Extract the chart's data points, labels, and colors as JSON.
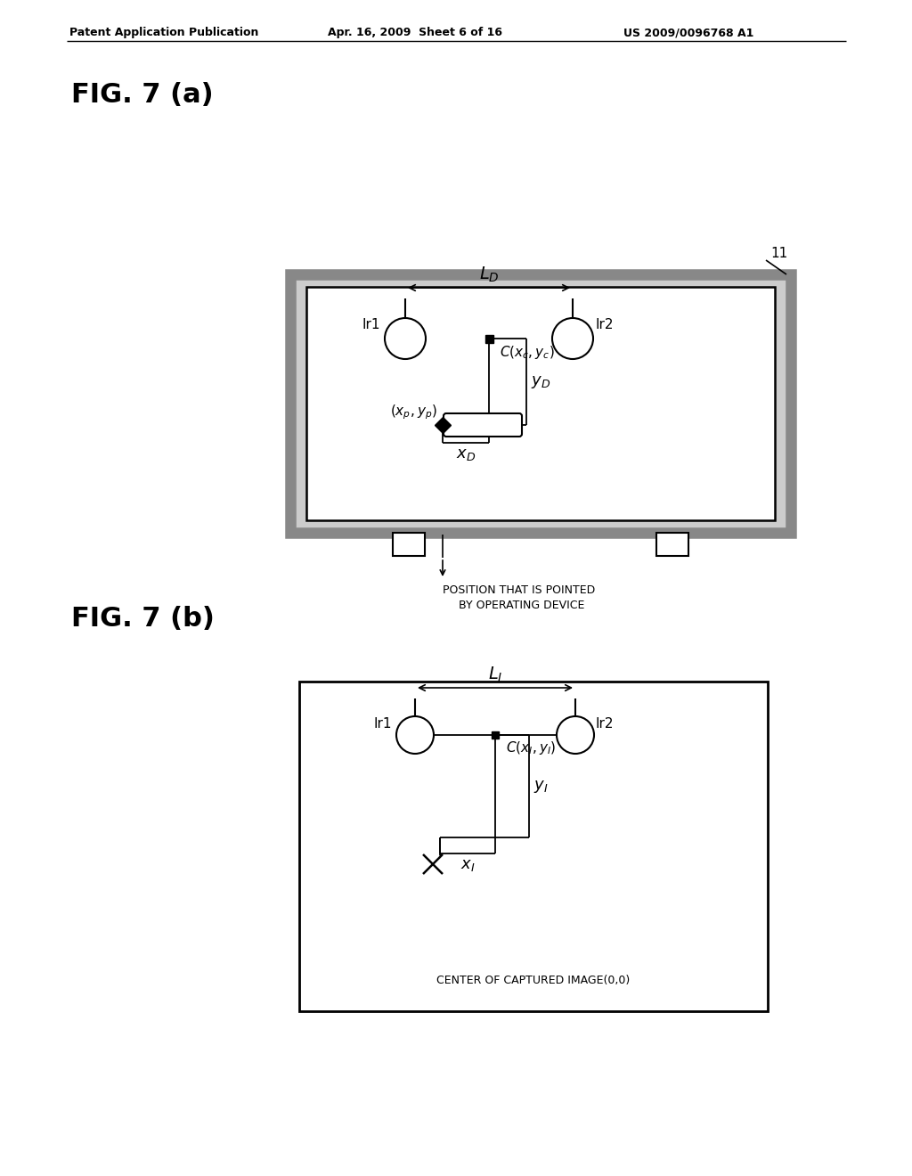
{
  "bg_color": "#ffffff",
  "header_left": "Patent Application Publication",
  "header_mid": "Apr. 16, 2009  Sheet 6 of 16",
  "header_right": "US 2009/0096768 A1",
  "fig_a_label": "FIG. 7 (a)",
  "fig_b_label": "FIG. 7 (b)",
  "caption_a_1": "POSITION THAT IS POINTED",
  "caption_a_2": "BY OPERATING DEVICE",
  "caption_b": "CENTER OF CAPTURED IMAGE(0,0)",
  "label_11": "11"
}
